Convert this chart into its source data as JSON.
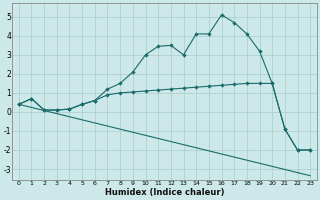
{
  "xlabel": "Humidex (Indice chaleur)",
  "bg_color": "#cce8e8",
  "grid_color": "#aacccc",
  "line_color": "#1a6b6b",
  "xlim": [
    -0.5,
    23.5
  ],
  "ylim": [
    -3.6,
    5.7
  ],
  "xticks": [
    0,
    1,
    2,
    3,
    4,
    5,
    6,
    7,
    8,
    9,
    10,
    11,
    12,
    13,
    14,
    15,
    16,
    17,
    18,
    19,
    20,
    21,
    22,
    23
  ],
  "yticks": [
    -3,
    -2,
    -1,
    0,
    1,
    2,
    3,
    4,
    5
  ],
  "line1_x": [
    0,
    1,
    2,
    3,
    4,
    5,
    6,
    7,
    8,
    9,
    10,
    11,
    12,
    13,
    14,
    15,
    16,
    17,
    18,
    19,
    20,
    21,
    22,
    23
  ],
  "line1_y": [
    0.4,
    0.7,
    0.1,
    0.1,
    0.15,
    0.4,
    0.6,
    1.2,
    1.5,
    2.1,
    3.0,
    3.45,
    3.5,
    3.0,
    4.1,
    4.1,
    5.1,
    4.7,
    4.1,
    3.2,
    1.5,
    -0.9,
    -2.0,
    -2.0
  ],
  "line2_x": [
    0,
    1,
    2,
    3,
    4,
    5,
    6,
    7,
    8,
    9,
    10,
    11,
    12,
    13,
    14,
    15,
    16,
    17,
    18,
    19,
    20,
    21,
    22,
    23
  ],
  "line2_y": [
    0.4,
    0.7,
    0.1,
    0.1,
    0.15,
    0.4,
    0.6,
    0.9,
    1.0,
    1.05,
    1.1,
    1.15,
    1.2,
    1.25,
    1.3,
    1.35,
    1.4,
    1.45,
    1.5,
    1.5,
    1.5,
    -0.9,
    -2.0,
    -2.0
  ],
  "line3_x": [
    0,
    23
  ],
  "line3_y": [
    0.4,
    -3.35
  ],
  "marker": "D",
  "markersize": 2.2,
  "linewidth": 0.8
}
